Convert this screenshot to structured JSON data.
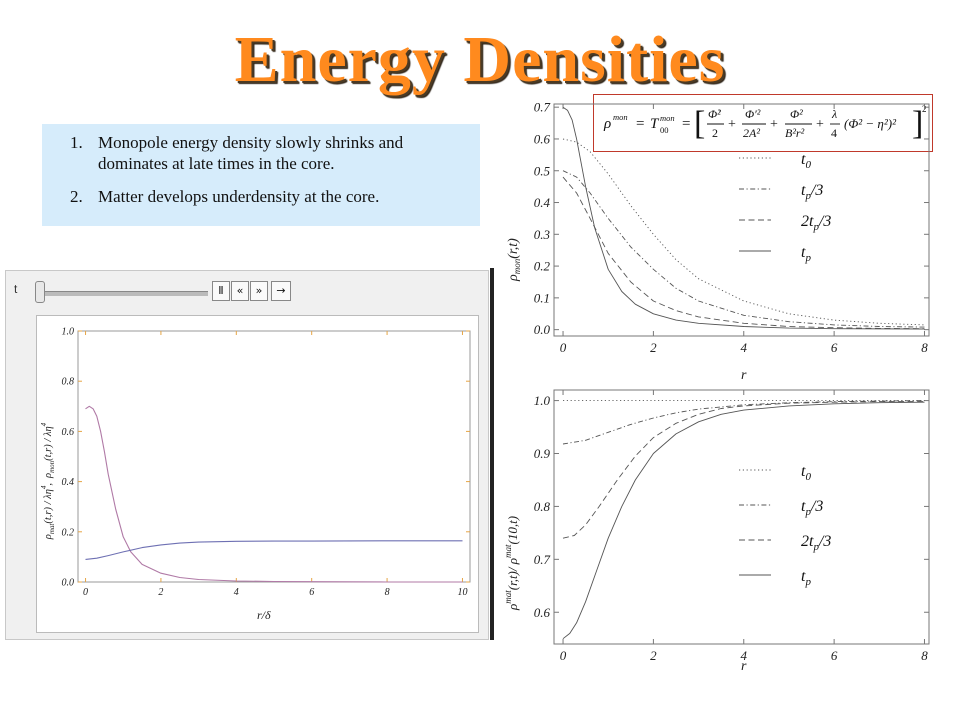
{
  "title": "Energy Densities",
  "notes": [
    {
      "num": "1.",
      "text": "Monopole energy density slowly shrinks and dominates at late times in the core."
    },
    {
      "num": "2.",
      "text": "Matter develops underdensity at the core."
    }
  ],
  "formula": {
    "lhs": "ρ",
    "lhs_sup": "mon",
    "eq": "=",
    "t": "T",
    "t_sub": "00",
    "t_sup": "mon",
    "bracket_open": "[",
    "bracket_close": "]",
    "term1_num": "Φ̇²",
    "term1_den": "2",
    "plus": "+",
    "term2_num": "Φ′²",
    "term2_den": "2A²",
    "term3_num": "Φ²",
    "term3_den": "B²r²",
    "term4_num": "λ",
    "term4_den": "4",
    "term4_paren": "(Φ² − η²)²",
    "sq": "2"
  },
  "manipulate": {
    "t_label": "t",
    "slider_value": 0.0,
    "buttons": {
      "pause": "Ⅱ",
      "faster": "«",
      "slower": "»",
      "step": "→"
    }
  },
  "line_styles": {
    "t0": "dotted",
    "tp3": "dashdot",
    "2tp3": "dashed",
    "tp": "solid"
  },
  "colors": {
    "monopole_curve": "#b07aa6",
    "matter_curve": "#6e70b3",
    "frame_tick": "#e6a545",
    "bracket": "#c0392b"
  },
  "chart_data": [
    {
      "type": "line",
      "xlabel_main": "r",
      "xlabel_sub": "δ",
      "ylabel": "ρmat(t,r) / λη⁴ ,  ρmon(t,r) / λη⁴",
      "ylabel_parts": {
        "a": "ρ",
        "a_sub": "mat",
        "a_args": "(t,r) / λη",
        "a_sup": "4",
        "sep": ",",
        "b": "ρ",
        "b_sub": "mon",
        "b_args": "(t,r) / λη",
        "b_sup": "4"
      },
      "xlim": [
        -0.2,
        10.2
      ],
      "ylim": [
        0,
        1.0
      ],
      "xticks": [
        0,
        2,
        4,
        6,
        8,
        10
      ],
      "yticks": [
        0.0,
        0.2,
        0.4,
        0.6,
        0.8,
        1.0
      ],
      "ytick_labels": [
        "0.0",
        "0.2",
        "0.4",
        "0.6",
        "0.8",
        "1.0"
      ],
      "series": [
        {
          "x": [
            0,
            0.1,
            0.2,
            0.3,
            0.4,
            0.5,
            0.6,
            0.8,
            1.0,
            1.2,
            1.5,
            2,
            2.5,
            3,
            4,
            5,
            6,
            8,
            10
          ],
          "y": [
            0.69,
            0.7,
            0.69,
            0.66,
            0.6,
            0.52,
            0.43,
            0.29,
            0.18,
            0.12,
            0.07,
            0.035,
            0.018,
            0.01,
            0.004,
            0.002,
            0.001,
            0.0,
            0.0
          ]
        },
        {
          "x": [
            0,
            0.3,
            0.6,
            1.0,
            1.5,
            2,
            2.5,
            3,
            4,
            5,
            6,
            8,
            10
          ],
          "y": [
            0.09,
            0.095,
            0.105,
            0.12,
            0.137,
            0.148,
            0.155,
            0.159,
            0.162,
            0.163,
            0.163,
            0.164,
            0.164
          ]
        }
      ]
    },
    {
      "type": "line",
      "xlabel": "r",
      "ylabel": "ρmon(r,t)",
      "ylabel_parts": {
        "a": "ρ",
        "a_sub": "mon",
        "a_args": "(r,t)"
      },
      "xlim": [
        -0.2,
        8.1
      ],
      "ylim": [
        -0.02,
        0.71
      ],
      "xticks": [
        0,
        2,
        4,
        6,
        8
      ],
      "yticks": [
        0.0,
        0.1,
        0.2,
        0.3,
        0.4,
        0.5,
        0.6,
        0.7
      ],
      "ytick_labels": [
        "0.0",
        "0.1",
        "0.2",
        "0.3",
        "0.4",
        "0.5",
        "0.6",
        "0.7"
      ],
      "legend_position": "top-right",
      "series": [
        {
          "name": "t0",
          "legend": {
            "base": "t",
            "sub": "0",
            "suffix": ""
          },
          "style": "dotted",
          "x": [
            0,
            0.3,
            0.6,
            1,
            1.5,
            2,
            2.5,
            3,
            4,
            5,
            6,
            7,
            8
          ],
          "y": [
            0.6,
            0.59,
            0.56,
            0.49,
            0.39,
            0.3,
            0.22,
            0.16,
            0.09,
            0.05,
            0.03,
            0.02,
            0.015
          ]
        },
        {
          "name": "tp/3",
          "legend": {
            "base": "t",
            "sub": "p",
            "suffix": "/3"
          },
          "style": "dashdot",
          "x": [
            0,
            0.3,
            0.6,
            1,
            1.5,
            2,
            2.5,
            3,
            4,
            5,
            6,
            7,
            8
          ],
          "y": [
            0.5,
            0.48,
            0.43,
            0.35,
            0.26,
            0.19,
            0.13,
            0.09,
            0.045,
            0.025,
            0.015,
            0.01,
            0.008
          ]
        },
        {
          "name": "2tp/3",
          "legend": {
            "base": "2t",
            "sub": "p",
            "suffix": "/3"
          },
          "style": "dashed",
          "x": [
            0,
            0.3,
            0.6,
            1,
            1.5,
            2,
            2.5,
            3,
            4,
            5,
            6,
            7,
            8
          ],
          "y": [
            0.48,
            0.43,
            0.35,
            0.24,
            0.15,
            0.09,
            0.06,
            0.04,
            0.02,
            0.01,
            0.006,
            0.004,
            0.003
          ]
        },
        {
          "name": "tp",
          "legend": {
            "base": "t",
            "sub": "p",
            "suffix": ""
          },
          "style": "solid",
          "x": [
            0,
            0.1,
            0.2,
            0.3,
            0.5,
            0.7,
            1,
            1.3,
            1.6,
            2,
            2.5,
            3,
            4,
            5,
            6,
            8
          ],
          "y": [
            0.7,
            0.69,
            0.66,
            0.6,
            0.45,
            0.32,
            0.19,
            0.12,
            0.08,
            0.05,
            0.03,
            0.02,
            0.01,
            0.005,
            0.003,
            0.002
          ]
        }
      ]
    },
    {
      "type": "line",
      "xlabel": "r",
      "ylabel": "ρmat(r,t)/ρmat(10,t)",
      "ylabel_parts": {
        "a": "ρ",
        "a_sup": "mat",
        "a_args": "(r,t)/ ρ",
        "b_sup": "mat",
        "b_args": "(10,t)"
      },
      "xlim": [
        -0.2,
        8.1
      ],
      "ylim": [
        0.54,
        1.02
      ],
      "xticks": [
        0,
        2,
        4,
        6,
        8
      ],
      "yticks": [
        0.6,
        0.7,
        0.8,
        0.9,
        1.0
      ],
      "ytick_labels": [
        "0.6",
        "0.7",
        "0.8",
        "0.9",
        "1.0"
      ],
      "legend_position": "right",
      "series": [
        {
          "name": "t0",
          "legend": {
            "base": "t",
            "sub": "0",
            "suffix": ""
          },
          "style": "dotted",
          "x": [
            0,
            2,
            4,
            6,
            8
          ],
          "y": [
            1.0,
            1.0,
            1.0,
            1.0,
            1.0
          ]
        },
        {
          "name": "tp/3",
          "legend": {
            "base": "t",
            "sub": "p",
            "suffix": "/3"
          },
          "style": "dashdot",
          "x": [
            0,
            0.5,
            1,
            1.5,
            2,
            2.5,
            3,
            4,
            5,
            6,
            7,
            8
          ],
          "y": [
            0.918,
            0.925,
            0.94,
            0.955,
            0.967,
            0.977,
            0.984,
            0.992,
            0.996,
            0.998,
            0.999,
            1.0
          ]
        },
        {
          "name": "2tp/3",
          "legend": {
            "base": "2t",
            "sub": "p",
            "suffix": "/3"
          },
          "style": "dashed",
          "x": [
            0,
            0.25,
            0.5,
            0.8,
            1.2,
            1.6,
            2,
            2.5,
            3,
            3.5,
            4,
            5,
            6,
            7,
            8
          ],
          "y": [
            0.74,
            0.745,
            0.765,
            0.8,
            0.85,
            0.895,
            0.93,
            0.957,
            0.974,
            0.985,
            0.99,
            0.995,
            0.997,
            0.998,
            0.998
          ]
        },
        {
          "name": "tp",
          "legend": {
            "base": "t",
            "sub": "p",
            "suffix": ""
          },
          "style": "solid",
          "x": [
            0,
            0.15,
            0.3,
            0.5,
            0.75,
            1,
            1.3,
            1.6,
            2,
            2.5,
            3,
            3.5,
            4,
            5,
            6,
            7,
            8
          ],
          "y": [
            0.55,
            0.56,
            0.58,
            0.62,
            0.68,
            0.74,
            0.8,
            0.85,
            0.9,
            0.937,
            0.96,
            0.974,
            0.982,
            0.99,
            0.994,
            0.996,
            0.997
          ]
        }
      ]
    }
  ]
}
